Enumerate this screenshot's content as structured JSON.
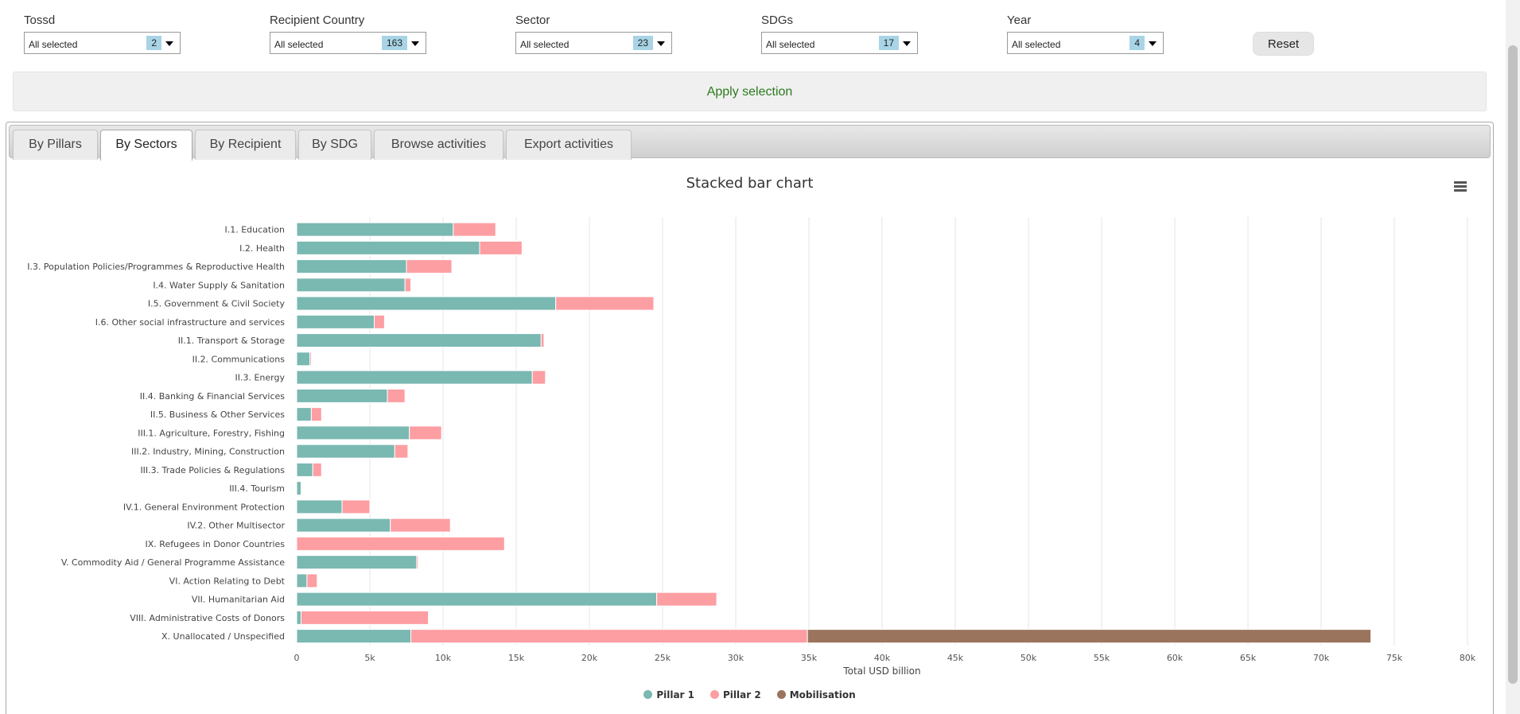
{
  "filters": [
    {
      "label": "Tossd",
      "value": "All selected",
      "count": "2"
    },
    {
      "label": "Recipient Country",
      "value": "All selected",
      "count": "163"
    },
    {
      "label": "Sector",
      "value": "All selected",
      "count": "23"
    },
    {
      "label": "SDGs",
      "value": "All selected",
      "count": "17"
    },
    {
      "label": "Year",
      "value": "All selected",
      "count": "4"
    }
  ],
  "reset_label": "Reset",
  "apply_label": "Apply selection",
  "tabs": [
    {
      "label": "By Pillars",
      "active": false
    },
    {
      "label": "By Sectors",
      "active": true
    },
    {
      "label": "By Recipient",
      "active": false
    },
    {
      "label": "By SDG",
      "active": false
    },
    {
      "label": "Browse activities",
      "active": false
    },
    {
      "label": "Export activities",
      "active": false
    }
  ],
  "colors": {
    "pillar1": "#7ab8b2",
    "pillar2": "#fd9ea3",
    "mobilisation": "#9a745c",
    "grid": "#e6e6e6"
  },
  "chart_data": {
    "type": "bar",
    "orientation": "horizontal",
    "stacked": true,
    "title": "Stacked bar chart",
    "xlabel": "Total USD billion",
    "xlim": [
      0,
      80000
    ],
    "xticks": [
      "0",
      "5k",
      "10k",
      "15k",
      "20k",
      "25k",
      "30k",
      "35k",
      "40k",
      "45k",
      "50k",
      "55k",
      "60k",
      "65k",
      "70k",
      "75k",
      "80k"
    ],
    "grid": true,
    "legend_position": "bottom-center",
    "categories": [
      "I.1. Education",
      "I.2. Health",
      "I.3. Population Policies/Programmes & Reproductive Health",
      "I.4. Water Supply & Sanitation",
      "I.5. Government & Civil Society",
      "I.6. Other social infrastructure and services",
      "II.1. Transport & Storage",
      "II.2. Communications",
      "II.3. Energy",
      "II.4. Banking & Financial Services",
      "II.5. Business & Other Services",
      "III.1. Agriculture, Forestry, Fishing",
      "III.2. Industry, Mining, Construction",
      "III.3. Trade Policies & Regulations",
      "III.4. Tourism",
      "IV.1. General Environment Protection",
      "IV.2. Other Multisector",
      "IX. Refugees in Donor Countries",
      "V. Commodity Aid / General Programme Assistance",
      "VI. Action Relating to Debt",
      "VII. Humanitarian Aid",
      "VIII. Administrative Costs of Donors",
      "X. Unallocated / Unspecified"
    ],
    "series": [
      {
        "name": "Pillar 1",
        "values": [
          10700,
          12500,
          7500,
          7400,
          17700,
          5300,
          16700,
          900,
          16100,
          6200,
          1000,
          7700,
          6700,
          1100,
          300,
          3100,
          6400,
          0,
          8200,
          700,
          24600,
          300,
          7800
        ]
      },
      {
        "name": "Pillar 2",
        "values": [
          2900,
          2900,
          3100,
          400,
          6700,
          700,
          200,
          100,
          900,
          1200,
          700,
          2200,
          900,
          600,
          0,
          1900,
          4100,
          14200,
          100,
          700,
          4100,
          8700,
          27100
        ]
      },
      {
        "name": "Mobilisation",
        "values": [
          0,
          0,
          0,
          0,
          0,
          0,
          0,
          0,
          0,
          0,
          0,
          0,
          0,
          0,
          0,
          0,
          0,
          0,
          0,
          0,
          0,
          0,
          38500
        ]
      }
    ]
  }
}
